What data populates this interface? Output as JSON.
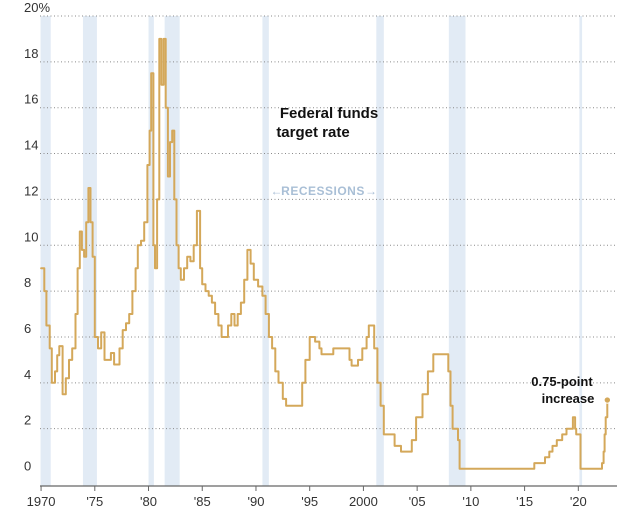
{
  "chart_data": {
    "type": "line",
    "title": "Federal funds",
    "title_line2": "target rate",
    "recession_label": "RECESSIONS",
    "recession_arrow_left": "←",
    "recession_arrow_right": "→",
    "annotation_line1": "0.75-point",
    "annotation_line2": "increase",
    "x_tick_labels": [
      "1970",
      "'75",
      "'80",
      "'85",
      "'90",
      "'95",
      "2000",
      "'05",
      "'10",
      "'15",
      "'20"
    ],
    "x_tick_values": [
      1970,
      1975,
      1980,
      1985,
      1990,
      1995,
      2000,
      2005,
      2010,
      2015,
      2020
    ],
    "y_tick_labels": [
      "0",
      "2",
      "4",
      "6",
      "8",
      "10",
      "12",
      "14",
      "16",
      "18",
      "20%"
    ],
    "y_tick_values": [
      0,
      2,
      4,
      6,
      8,
      10,
      12,
      14,
      16,
      18,
      20
    ],
    "xlim": [
      1969.9,
      2023.6
    ],
    "ylim": [
      -0.5,
      20
    ],
    "grid": true,
    "colors": {
      "line": "#d4a85a",
      "recession": "#dde8f3"
    },
    "recessions": [
      [
        1969.95,
        1970.9
      ],
      [
        1973.9,
        1975.2
      ],
      [
        1980.0,
        1980.5
      ],
      [
        1981.5,
        1982.9
      ],
      [
        1990.6,
        1991.2
      ],
      [
        2001.2,
        2001.9
      ],
      [
        2007.95,
        2009.5
      ],
      [
        2020.1,
        2020.35
      ]
    ],
    "series": [
      {
        "x": [
          1970.0,
          1970.3,
          1970.5,
          1970.8,
          1971.0,
          1971.3,
          1971.5,
          1971.7,
          1972.0,
          1972.3,
          1972.6,
          1972.9,
          1973.2,
          1973.4,
          1973.6,
          1973.8,
          1974.0,
          1974.2,
          1974.4,
          1974.6,
          1974.8,
          1975.0,
          1975.3,
          1975.6,
          1975.9,
          1976.2,
          1976.5,
          1976.8,
          1977.0,
          1977.3,
          1977.6,
          1977.9,
          1978.2,
          1978.5,
          1978.8,
          1979.0,
          1979.3,
          1979.6,
          1979.9,
          1980.1,
          1980.25,
          1980.45,
          1980.6,
          1980.8,
          1981.0,
          1981.2,
          1981.4,
          1981.6,
          1981.8,
          1982.0,
          1982.2,
          1982.4,
          1982.6,
          1982.8,
          1983.0,
          1983.3,
          1983.6,
          1983.9,
          1984.2,
          1984.5,
          1984.8,
          1985.0,
          1985.3,
          1985.6,
          1985.9,
          1986.2,
          1986.5,
          1986.8,
          1987.1,
          1987.4,
          1987.7,
          1988.0,
          1988.3,
          1988.6,
          1988.9,
          1989.2,
          1989.5,
          1989.8,
          1990.2,
          1990.6,
          1990.9,
          1991.2,
          1991.5,
          1991.8,
          1992.1,
          1992.5,
          1992.8,
          1993.5,
          1994.0,
          1994.3,
          1994.6,
          1995.0,
          1995.5,
          1995.9,
          1996.1,
          1997.2,
          1998.7,
          1998.9,
          1999.5,
          1999.9,
          2000.3,
          2000.5,
          2001.0,
          2001.3,
          2001.6,
          2001.9,
          2002.9,
          2003.5,
          2004.5,
          2004.9,
          2005.5,
          2006.0,
          2006.5,
          2007.6,
          2007.9,
          2008.1,
          2008.3,
          2008.8,
          2008.95,
          2010.0,
          2015.0,
          2015.9,
          2016.9,
          2017.3,
          2017.6,
          2018.0,
          2018.5,
          2018.9,
          2019.5,
          2019.7,
          2019.8,
          2020.2,
          2021.0,
          2022.2,
          2022.35,
          2022.45,
          2022.55,
          2022.7
        ],
        "values": [
          9.0,
          8.0,
          6.5,
          5.5,
          4.0,
          4.5,
          5.2,
          5.6,
          3.5,
          4.2,
          5.0,
          5.5,
          7.0,
          9.0,
          10.6,
          9.8,
          9.5,
          11.0,
          12.5,
          11.0,
          9.5,
          6.0,
          5.5,
          6.2,
          5.0,
          5.0,
          5.3,
          4.8,
          4.8,
          5.5,
          6.3,
          6.6,
          7.0,
          8.0,
          9.0,
          10.0,
          10.2,
          11.0,
          13.5,
          15.0,
          17.5,
          10.0,
          9.0,
          12.0,
          19.0,
          17.0,
          19.0,
          16.0,
          13.0,
          14.5,
          15.0,
          12.0,
          10.0,
          9.0,
          8.5,
          9.0,
          9.5,
          9.3,
          10.0,
          11.5,
          9.0,
          8.3,
          8.0,
          7.8,
          7.5,
          7.0,
          6.5,
          6.0,
          6.0,
          6.5,
          7.0,
          6.5,
          7.0,
          7.5,
          8.5,
          9.8,
          9.2,
          8.5,
          8.2,
          7.8,
          7.0,
          6.0,
          5.5,
          4.5,
          4.0,
          3.3,
          3.0,
          3.0,
          3.0,
          4.0,
          5.0,
          6.0,
          5.8,
          5.5,
          5.25,
          5.5,
          5.0,
          4.75,
          5.0,
          5.5,
          6.0,
          6.5,
          5.5,
          4.0,
          3.0,
          1.75,
          1.25,
          1.0,
          1.5,
          2.5,
          3.5,
          4.5,
          5.25,
          5.25,
          4.5,
          3.0,
          2.0,
          1.5,
          0.25,
          0.25,
          0.25,
          0.5,
          0.75,
          1.0,
          1.25,
          1.5,
          1.75,
          2.0,
          2.5,
          2.0,
          1.75,
          0.25,
          0.25,
          0.5,
          1.0,
          1.75,
          2.5,
          3.25
        ]
      }
    ]
  }
}
